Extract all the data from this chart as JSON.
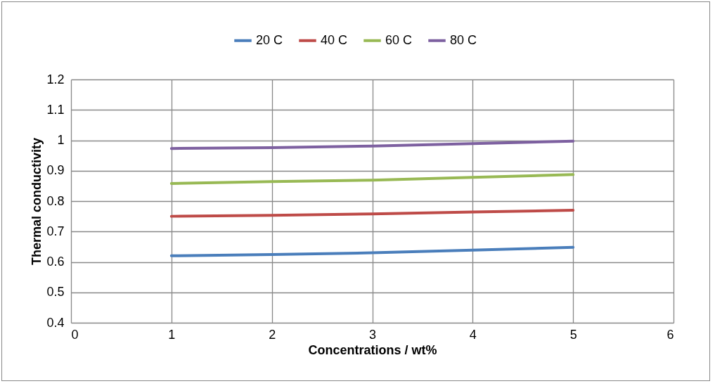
{
  "chart_data": {
    "type": "line",
    "xlabel": "Concentrations / wt%",
    "ylabel": "Thermal conductivity",
    "x": [
      1,
      2,
      3,
      4,
      5
    ],
    "series": [
      {
        "name": "20 C",
        "color": "#4a7ebb",
        "values": [
          0.62,
          0.624,
          0.63,
          0.639,
          0.648
        ]
      },
      {
        "name": "40 C",
        "color": "#be4b48",
        "values": [
          0.75,
          0.753,
          0.758,
          0.764,
          0.77
        ]
      },
      {
        "name": "60 C",
        "color": "#98b954",
        "values": [
          0.858,
          0.864,
          0.869,
          0.878,
          0.887
        ]
      },
      {
        "name": "80 C",
        "color": "#7d60a0",
        "values": [
          0.973,
          0.976,
          0.981,
          0.989,
          0.997
        ]
      }
    ],
    "xlim": [
      0,
      6
    ],
    "xticks": [
      0,
      1,
      2,
      3,
      4,
      5,
      6
    ],
    "ylim": [
      0.4,
      1.2
    ],
    "yticks": [
      0.4,
      0.5,
      0.6,
      0.7,
      0.8,
      0.9,
      1,
      1.1,
      1.2
    ],
    "grid": true,
    "legend": "top",
    "marker": "none",
    "line_style": "solid"
  }
}
